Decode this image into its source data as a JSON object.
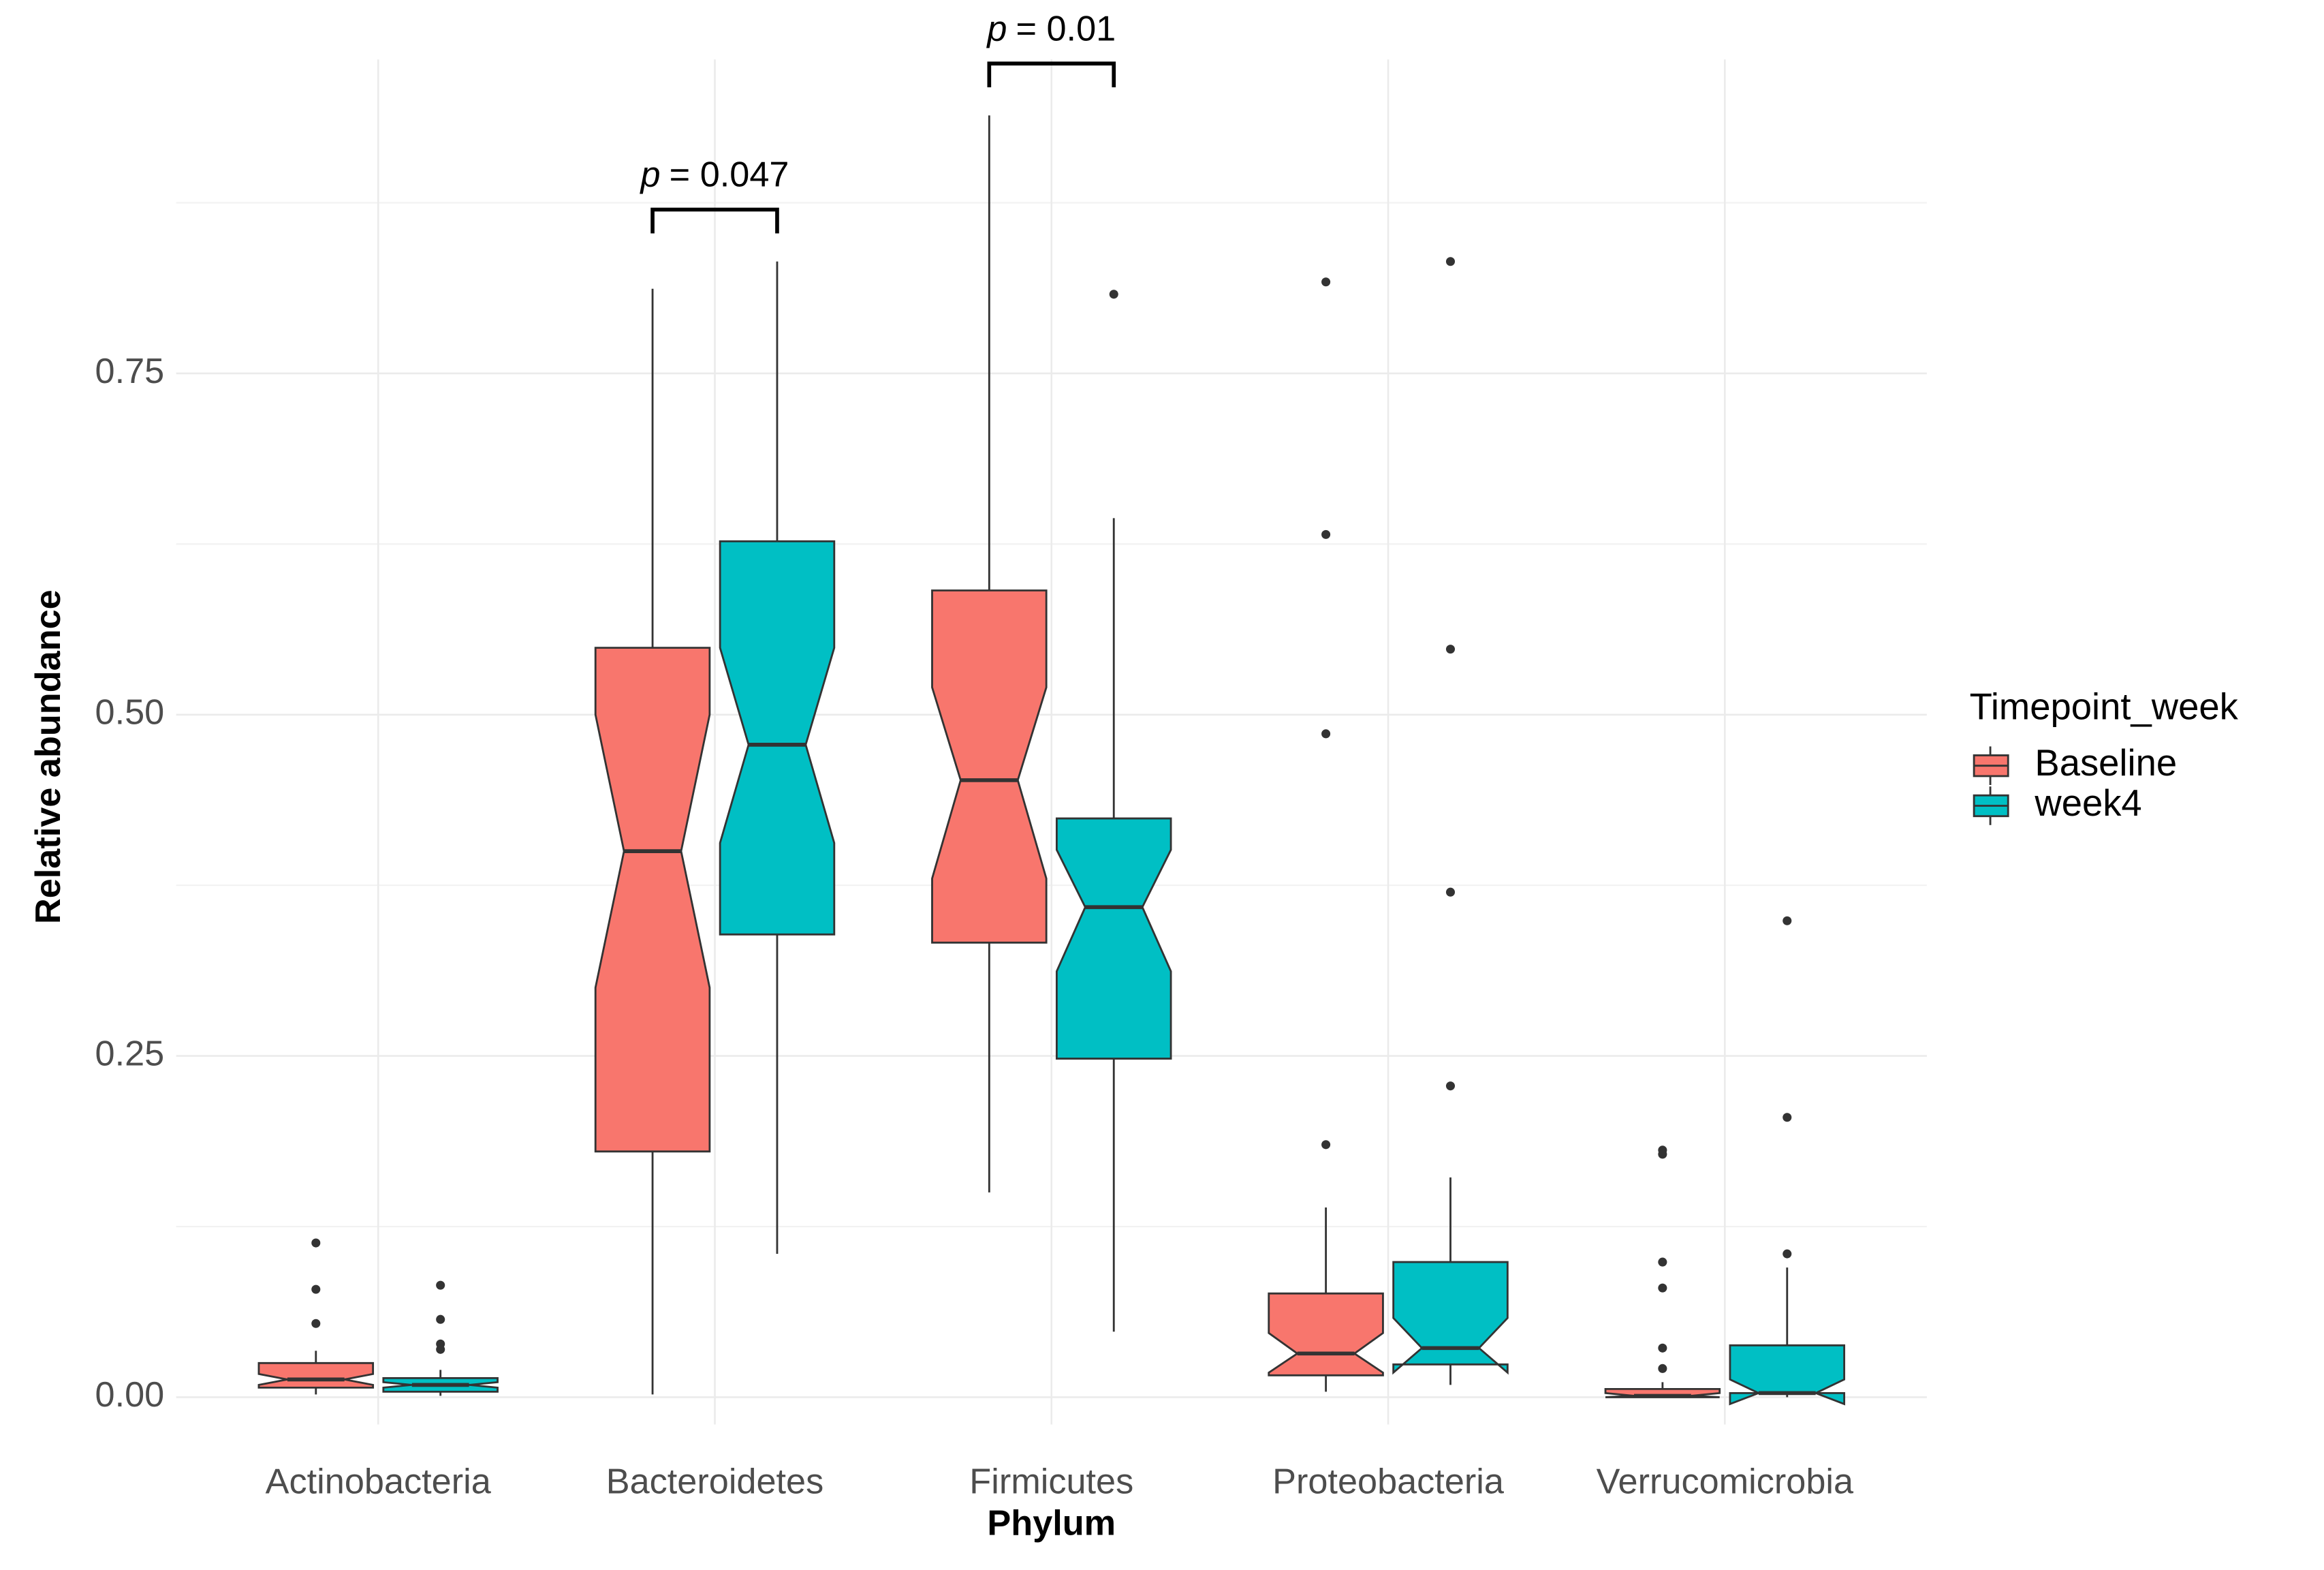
{
  "chart_data": {
    "type": "boxplot",
    "x_label": "Phylum",
    "y_label": "Relative abundance",
    "legend_title": "Timepoint_week",
    "categories": [
      "Actinobacteria",
      "Bacteroidetes",
      "Firmicutes",
      "Proteobacteria",
      "Verrucomicrobia"
    ],
    "ylim": [
      -0.02,
      0.98
    ],
    "yticks": [
      {
        "value": 0,
        "label": "0.00"
      },
      0.25,
      {
        "value": 0.5,
        "label": "0.50"
      },
      0.75
    ],
    "yminor": [
      0.125,
      0.375,
      0.625,
      0.875
    ],
    "grid": true,
    "notch": true,
    "legend_position": "right",
    "series": [
      {
        "name": "Baseline",
        "color": "#F8766D",
        "boxes": [
          {
            "low": 0.002,
            "q1": 0.007,
            "notch_low": 0.009,
            "median": 0.013,
            "notch_high": 0.017,
            "q3": 0.025,
            "high": 0.034,
            "outliers": [
              0.113,
              0.079,
              0.054
            ]
          },
          {
            "low": 0.002,
            "q1": 0.18,
            "notch_low": 0.3,
            "median": 0.4,
            "notch_high": 0.5,
            "q3": 0.549,
            "high": 0.812,
            "outliers": []
          },
          {
            "low": 0.15,
            "q1": 0.333,
            "notch_low": 0.38,
            "median": 0.452,
            "notch_high": 0.52,
            "q3": 0.591,
            "high": 0.939,
            "outliers": []
          },
          {
            "low": 0.004,
            "q1": 0.016,
            "notch_low": 0.018,
            "median": 0.032,
            "notch_high": 0.047,
            "q3": 0.076,
            "high": 0.139,
            "outliers": [
              0.185,
              0.486,
              0.632,
              0.817
            ]
          },
          {
            "low": 0.0,
            "q1": 0.0,
            "notch_low": 0.0,
            "median": 0.001,
            "notch_high": 0.003,
            "q3": 0.006,
            "high": 0.011,
            "outliers": [
              0.181,
              0.178,
              0.099,
              0.08,
              0.036,
              0.021
            ]
          }
        ]
      },
      {
        "name": "week4",
        "color": "#00BFC4",
        "boxes": [
          {
            "low": 0.001,
            "q1": 0.004,
            "notch_low": 0.007,
            "median": 0.009,
            "notch_high": 0.011,
            "q3": 0.014,
            "high": 0.02,
            "outliers": [
              0.082,
              0.057,
              0.039,
              0.035
            ]
          },
          {
            "low": 0.105,
            "q1": 0.339,
            "notch_low": 0.406,
            "median": 0.478,
            "notch_high": 0.549,
            "q3": 0.627,
            "high": 0.832,
            "outliers": []
          },
          {
            "low": 0.048,
            "q1": 0.248,
            "notch_low": 0.312,
            "median": 0.359,
            "notch_high": 0.401,
            "q3": 0.424,
            "high": 0.644,
            "outliers": [
              0.808
            ]
          },
          {
            "low": 0.009,
            "q1": 0.024,
            "notch_low": 0.018,
            "median": 0.036,
            "notch_high": 0.058,
            "q3": 0.099,
            "high": 0.161,
            "outliers": [
              0.228,
              0.37,
              0.548,
              0.832
            ]
          },
          {
            "low": 0.0,
            "q1": 0.003,
            "notch_low": -0.005,
            "median": 0.003,
            "notch_high": 0.013,
            "q3": 0.038,
            "high": 0.095,
            "outliers": [
              0.105,
              0.205,
              0.349
            ]
          }
        ]
      }
    ],
    "annotations": [
      {
        "category": "Bacteroidetes",
        "symbol": "p",
        "text": "= 0.047",
        "y": 0.87
      },
      {
        "category": "Firmicutes",
        "symbol": "p",
        "text": "= 0.01",
        "y": 0.977
      }
    ]
  }
}
